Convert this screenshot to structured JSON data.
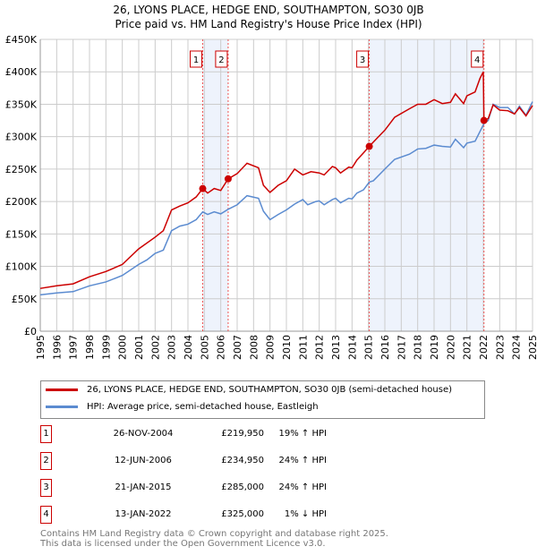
{
  "chart_data": {
    "type": "line",
    "title": "26, LYONS PLACE, HEDGE END, SOUTHAMPTON, SO30 0JB",
    "subtitle": "Price paid vs. HM Land Registry's House Price Index (HPI)",
    "xlim": [
      1995,
      2025
    ],
    "ylim": [
      0,
      450000
    ],
    "x_ticks": [
      "1995",
      "1996",
      "1997",
      "1998",
      "1999",
      "2000",
      "2001",
      "2002",
      "2003",
      "2004",
      "2005",
      "2006",
      "2007",
      "2008",
      "2009",
      "2010",
      "2011",
      "2012",
      "2013",
      "2014",
      "2015",
      "2016",
      "2017",
      "2018",
      "2019",
      "2020",
      "2021",
      "2022",
      "2023",
      "2024",
      "2025"
    ],
    "y_ticks": [
      {
        "v": 0,
        "l": "£0"
      },
      {
        "v": 50000,
        "l": "£50K"
      },
      {
        "v": 100000,
        "l": "£100K"
      },
      {
        "v": 150000,
        "l": "£150K"
      },
      {
        "v": 200000,
        "l": "£200K"
      },
      {
        "v": 250000,
        "l": "£250K"
      },
      {
        "v": 300000,
        "l": "£300K"
      },
      {
        "v": 350000,
        "l": "£350K"
      },
      {
        "v": 400000,
        "l": "£400K"
      },
      {
        "v": 450000,
        "l": "£450K"
      }
    ],
    "grid": true,
    "legend_placement": "below",
    "series": [
      {
        "name": "26, LYONS PLACE, HEDGE END, SOUTHAMPTON, SO30 0JB (semi-detached house)",
        "color": "#cc0000",
        "x": [
          1995,
          1996,
          1997,
          1998,
          1999,
          2000,
          2001,
          2002,
          2002.5,
          2003,
          2003.5,
          2004,
          2004.5,
          2004.9,
          2005.2,
          2005.6,
          2006,
          2006.45,
          2007,
          2007.6,
          2008.3,
          2008.6,
          2009,
          2009.5,
          2010,
          2010.5,
          2011,
          2011.5,
          2012,
          2012.3,
          2012.8,
          2013,
          2013.3,
          2013.8,
          2014,
          2014.3,
          2014.7,
          2015.05,
          2015.5,
          2016,
          2016.6,
          2017.5,
          2018,
          2018.5,
          2019,
          2019.5,
          2020,
          2020.3,
          2020.8,
          2021,
          2021.5,
          2021.8,
          2022.0,
          2022.04,
          2022.3,
          2022.6,
          2023,
          2023.5,
          2023.9,
          2024.2,
          2024.6,
          2025
        ],
        "y": [
          66,
          70,
          73,
          84,
          92,
          103,
          127,
          145,
          155,
          187,
          193,
          198,
          207,
          219.95,
          213,
          220,
          217,
          234.95,
          243,
          259,
          252,
          225,
          214,
          225,
          232,
          250,
          241,
          246,
          244,
          241,
          254,
          252,
          244,
          253,
          252,
          264,
          275,
          285,
          297,
          310,
          330,
          343,
          350,
          350,
          357,
          351,
          353,
          366,
          351,
          363,
          369,
          390,
          400,
          325,
          328,
          349,
          341,
          340,
          335,
          345,
          332,
          348
        ]
      },
      {
        "name": "HPI: Average price, semi-detached house, Eastleigh",
        "color": "#5b8bd0",
        "x": [
          1995,
          1996,
          1997,
          1998,
          1999,
          2000,
          2001,
          2001.5,
          2002,
          2002.5,
          2003,
          2003.5,
          2004,
          2004.5,
          2004.9,
          2005.2,
          2005.6,
          2006,
          2006.45,
          2007,
          2007.6,
          2008.3,
          2008.6,
          2009,
          2009.5,
          2010,
          2010.5,
          2011,
          2011.3,
          2011.8,
          2012,
          2012.3,
          2012.8,
          2013,
          2013.3,
          2013.8,
          2014,
          2014.3,
          2014.7,
          2015.05,
          2015.3,
          2016,
          2016.6,
          2017.5,
          2018,
          2018.5,
          2019,
          2019.5,
          2020,
          2020.3,
          2020.8,
          2021,
          2021.5,
          2022.04,
          2022.3,
          2022.6,
          2023,
          2023.5,
          2023.9,
          2024.2,
          2024.6,
          2025
        ],
        "y": [
          56,
          59,
          61,
          70,
          76,
          86,
          103,
          110,
          120,
          125,
          155,
          162,
          165,
          172,
          184,
          180,
          184,
          181,
          188,
          195,
          209,
          205,
          185,
          172,
          180,
          187,
          196,
          203,
          195,
          200,
          201,
          195,
          203,
          205,
          198,
          205,
          204,
          213,
          218,
          230,
          232,
          250,
          265,
          273,
          281,
          282,
          287,
          285,
          284,
          296,
          283,
          290,
          293,
          320,
          325,
          350,
          345,
          345,
          335,
          347,
          333,
          354
        ]
      }
    ],
    "y_unit_multiplier": 1000,
    "shaded_ranges": [
      [
        2004.9,
        2006.45
      ],
      [
        2015.05,
        2022.04
      ]
    ],
    "sales": [
      {
        "n": "1",
        "x": 2004.9,
        "date": "26-NOV-2004",
        "price": "£219,950",
        "hpi": "19% ↑ HPI",
        "value": 219950
      },
      {
        "n": "2",
        "x": 2006.45,
        "date": "12-JUN-2006",
        "price": "£234,950",
        "hpi": "24% ↑ HPI",
        "value": 234950
      },
      {
        "n": "3",
        "x": 2015.05,
        "date": "21-JAN-2015",
        "price": "£285,000",
        "hpi": "24% ↑ HPI",
        "value": 285000
      },
      {
        "n": "4",
        "x": 2022.04,
        "date": "13-JAN-2022",
        "price": "£325,000",
        "hpi": "1% ↓ HPI",
        "value": 325000
      }
    ]
  },
  "footer": {
    "line1": "Contains HM Land Registry data © Crown copyright and database right 2025.",
    "line2": "This data is licensed under the Open Government Licence v3.0."
  }
}
